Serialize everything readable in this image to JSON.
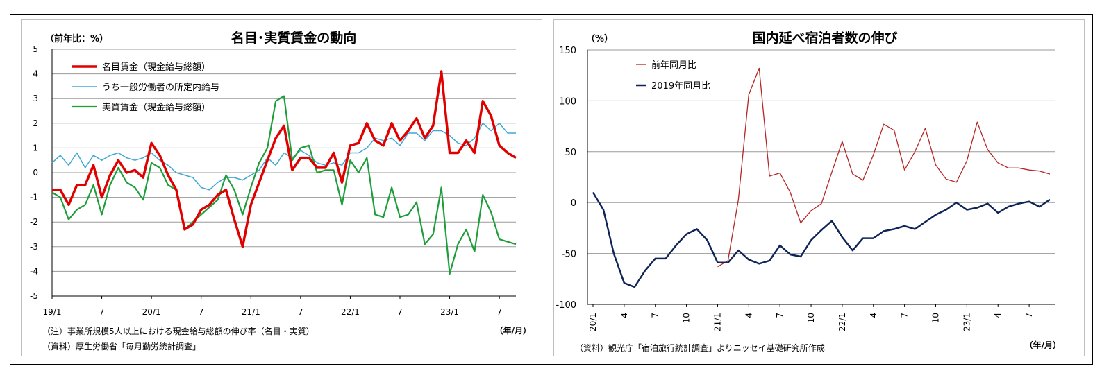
{
  "left": {
    "unit_label": "（前年比：%）",
    "title": "名目･実質賃金の動向",
    "period_label": "（年/月）",
    "note": "（注）事業所規模5人以上における現金給与総額の伸び率（名目・実質）",
    "source": "（資料）厚生労働省「毎月勤労統計調査」",
    "colors": {
      "nominal": "#e00000",
      "scheduled": "#3fa7d6",
      "real": "#1e9e3a"
    }
  },
  "right": {
    "unit_label": "（%）",
    "title": "国内延べ宿泊者数の伸び",
    "period_label": "（年/月）",
    "source": "（資料）観光庁「宿泊旅行統計調査」よりニッセイ基礎研究所作成",
    "colors": {
      "yoy": "#b52626",
      "vs2019": "#0f2557"
    }
  },
  "chart_data": [
    {
      "type": "line",
      "title": "名目･実質賃金の動向",
      "ylabel": "（前年比：%）",
      "xlabel": "（年/月）",
      "ylim": [
        -5,
        5
      ],
      "yticks": [
        5,
        4,
        3,
        2,
        1,
        0,
        -1,
        -2,
        -3,
        -4,
        -5
      ],
      "x_tick_labels": [
        {
          "index": 0,
          "label": "19/1"
        },
        {
          "index": 6,
          "label": "7"
        },
        {
          "index": 12,
          "label": "20/1"
        },
        {
          "index": 18,
          "label": "7"
        },
        {
          "index": 24,
          "label": "21/1"
        },
        {
          "index": 30,
          "label": "7"
        },
        {
          "index": 36,
          "label": "22/1"
        },
        {
          "index": 42,
          "label": "7"
        },
        {
          "index": 48,
          "label": "23/1"
        },
        {
          "index": 54,
          "label": "7"
        }
      ],
      "legend_position": "top-left",
      "grid": true,
      "series": [
        {
          "name": "名目賃金（現金給与総額）",
          "values": [
            -0.7,
            -0.7,
            -1.3,
            -0.5,
            -0.5,
            0.3,
            -1.0,
            -0.1,
            0.5,
            0.0,
            0.1,
            -0.2,
            1.2,
            0.7,
            -0.1,
            -0.7,
            -2.3,
            -2.1,
            -1.5,
            -1.3,
            -0.9,
            -0.7,
            -1.9,
            -3.0,
            -1.3,
            -0.4,
            0.5,
            1.4,
            1.9,
            0.1,
            0.6,
            0.6,
            0.2,
            0.2,
            0.8,
            -0.4,
            1.1,
            1.2,
            2.0,
            1.3,
            1.1,
            2.0,
            1.3,
            1.7,
            2.2,
            1.4,
            1.9,
            4.1,
            0.8,
            0.8,
            1.3,
            0.8,
            2.9,
            2.3,
            1.1,
            0.8,
            0.6
          ]
        },
        {
          "name": "うち一般労働者の所定内給与",
          "values": [
            0.4,
            0.7,
            0.3,
            0.8,
            0.2,
            0.7,
            0.5,
            0.7,
            0.8,
            0.6,
            0.5,
            0.6,
            0.8,
            0.5,
            0.3,
            0.0,
            -0.1,
            -0.2,
            -0.6,
            -0.7,
            -0.4,
            -0.2,
            -0.2,
            -0.3,
            -0.1,
            0.1,
            0.6,
            0.3,
            0.8,
            0.6,
            0.9,
            0.7,
            0.4,
            0.3,
            0.4,
            0.3,
            0.8,
            0.8,
            1.0,
            1.4,
            1.3,
            1.4,
            1.1,
            1.6,
            1.6,
            1.3,
            1.7,
            1.7,
            1.5,
            1.2,
            1.1,
            1.4,
            2.0,
            1.7,
            2.0,
            1.6,
            1.6
          ]
        },
        {
          "name": "実質賃金（現金給与総額）",
          "values": [
            -0.8,
            -1.0,
            -1.9,
            -1.5,
            -1.3,
            -0.5,
            -1.7,
            -0.5,
            0.2,
            -0.4,
            -0.6,
            -1.1,
            0.4,
            0.2,
            -0.5,
            -0.7,
            -2.3,
            -2.0,
            -1.7,
            -1.4,
            -1.1,
            -0.1,
            -0.7,
            -1.7,
            -0.6,
            0.4,
            1.0,
            2.9,
            3.1,
            0.5,
            1.0,
            1.1,
            0.0,
            0.1,
            0.1,
            -1.3,
            0.5,
            0.0,
            0.6,
            -1.7,
            -1.8,
            -0.6,
            -1.8,
            -1.7,
            -1.2,
            -2.9,
            -2.5,
            -0.6,
            -4.1,
            -2.9,
            -2.3,
            -3.2,
            -0.9,
            -1.6,
            -2.7,
            -2.8,
            -2.9
          ]
        }
      ]
    },
    {
      "type": "line",
      "title": "国内延べ宿泊者数の伸び",
      "ylabel": "（%）",
      "xlabel": "（年/月）",
      "ylim": [
        -100,
        150
      ],
      "yticks": [
        150,
        100,
        50,
        0,
        -50,
        -100
      ],
      "x_tick_labels": [
        {
          "index": 0,
          "label": "20/1"
        },
        {
          "index": 3,
          "label": "4"
        },
        {
          "index": 6,
          "label": "7"
        },
        {
          "index": 9,
          "label": "10"
        },
        {
          "index": 12,
          "label": "21/1"
        },
        {
          "index": 15,
          "label": "4"
        },
        {
          "index": 18,
          "label": "7"
        },
        {
          "index": 21,
          "label": "10"
        },
        {
          "index": 24,
          "label": "22/1"
        },
        {
          "index": 27,
          "label": "4"
        },
        {
          "index": 30,
          "label": "7"
        },
        {
          "index": 33,
          "label": "10"
        },
        {
          "index": 36,
          "label": "23/1"
        },
        {
          "index": 39,
          "label": "4"
        },
        {
          "index": 42,
          "label": "7"
        }
      ],
      "legend_position": "top-left",
      "grid": true,
      "series": [
        {
          "name": "前年同月比",
          "start_index": 12,
          "values": [
            -63,
            -57,
            3,
            106,
            132,
            26,
            29,
            10,
            -20,
            -8,
            -1,
            30,
            60,
            28,
            22,
            47,
            77,
            71,
            32,
            50,
            73,
            37,
            23,
            20,
            41,
            79,
            52,
            39,
            34,
            34,
            32,
            31,
            28
          ]
        },
        {
          "name": "2019年同月比",
          "values": [
            10,
            -7,
            -50,
            -79,
            -83,
            -67,
            -55,
            -55,
            -42,
            -31,
            -26,
            -37,
            -59,
            -59,
            -47,
            -56,
            -60,
            -57,
            -42,
            -51,
            -53,
            -37,
            -27,
            -18,
            -34,
            -47,
            -35,
            -35,
            -28,
            -26,
            -23,
            -26,
            -19,
            -12,
            -7,
            0,
            -7,
            -5,
            -1,
            -10,
            -4,
            -1,
            1,
            -4,
            3
          ]
        }
      ]
    }
  ]
}
